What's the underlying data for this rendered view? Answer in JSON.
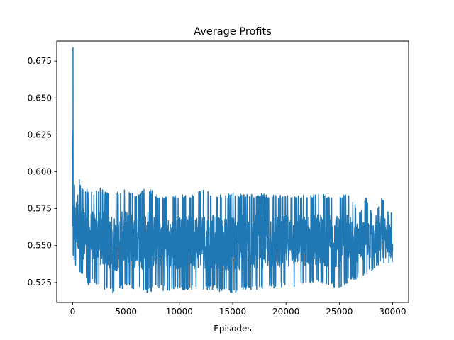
{
  "chart_data": {
    "type": "line",
    "title": "Average Profits",
    "xlabel": "Episodes",
    "ylabel": "",
    "xlim": [
      -1500,
      31500
    ],
    "ylim": [
      0.5115,
      0.6885
    ],
    "x_ticks": [
      0,
      5000,
      10000,
      15000,
      20000,
      25000,
      30000
    ],
    "x_tick_labels": [
      "0",
      "5000",
      "10000",
      "15000",
      "20000",
      "25000",
      "30000"
    ],
    "y_ticks": [
      0.525,
      0.55,
      0.575,
      0.6,
      0.625,
      0.65,
      0.675
    ],
    "y_tick_labels": [
      "0.525",
      "0.550",
      "0.575",
      "0.600",
      "0.625",
      "0.650",
      "0.675"
    ],
    "grid": false,
    "legend": "none",
    "series": [
      {
        "color": "#1f77b4",
        "x": [
          0,
          25,
          50,
          100,
          200,
          300,
          400,
          500,
          700,
          900,
          1200,
          1500,
          2000,
          2500,
          3000,
          3500,
          4000,
          5000,
          6000,
          7000,
          8000,
          9000,
          10000,
          11000,
          12000,
          13000,
          14000,
          15000,
          16000,
          17000,
          18000,
          19000,
          20000,
          21000,
          22000,
          23000,
          24000,
          25000,
          26000,
          27000,
          27500,
          28000,
          28500,
          29000,
          29500,
          30000
        ],
        "y_high": [
          0.584,
          0.684,
          0.595,
          0.593,
          0.592,
          0.594,
          0.602,
          0.601,
          0.593,
          0.589,
          0.588,
          0.589,
          0.586,
          0.59,
          0.587,
          0.585,
          0.586,
          0.589,
          0.584,
          0.59,
          0.584,
          0.583,
          0.585,
          0.584,
          0.588,
          0.586,
          0.584,
          0.586,
          0.585,
          0.585,
          0.585,
          0.584,
          0.585,
          0.585,
          0.584,
          0.586,
          0.584,
          0.585,
          0.584,
          0.573,
          0.584,
          0.573,
          0.573,
          0.584,
          0.573,
          0.573
        ],
        "y_low": [
          0.55,
          0.545,
          0.54,
          0.538,
          0.536,
          0.535,
          0.534,
          0.533,
          0.53,
          0.528,
          0.526,
          0.522,
          0.525,
          0.523,
          0.52,
          0.519,
          0.517,
          0.522,
          0.52,
          0.518,
          0.52,
          0.519,
          0.52,
          0.52,
          0.519,
          0.52,
          0.518,
          0.517,
          0.519,
          0.52,
          0.52,
          0.521,
          0.522,
          0.522,
          0.522,
          0.523,
          0.522,
          0.521,
          0.525,
          0.528,
          0.53,
          0.532,
          0.535,
          0.538,
          0.538,
          0.527
        ],
        "y_final": 0.546
      }
    ]
  }
}
